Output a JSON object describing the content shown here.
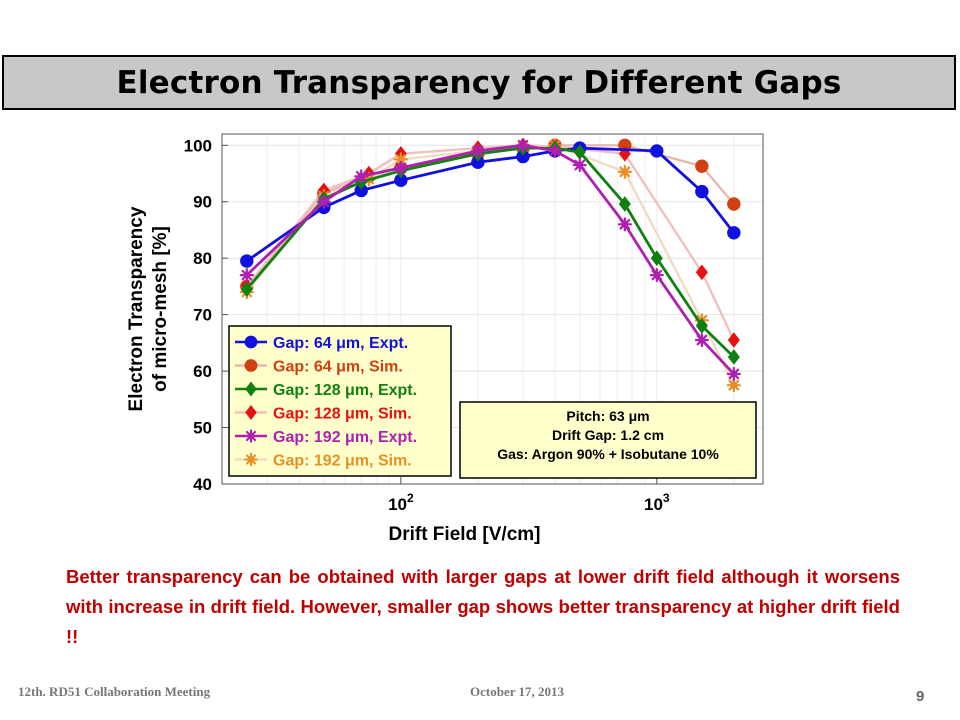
{
  "slide": {
    "title": "Electron Transparency for Different Gaps",
    "caption": "Better transparency can be obtained with larger gaps at lower drift field although it worsens with increase in drift field. However, smaller gap shows better transparency at higher drift field !!",
    "footer_left": "12th. RD51 Collaboration Meeting",
    "footer_date": "October 17, 2013",
    "page_number": "9"
  },
  "chart_data": {
    "type": "line",
    "xlabel": "Drift Field [V/cm]",
    "ylabel_lines": [
      "Electron Transparency",
      "of micro-mesh [%]"
    ],
    "x_scale": "log",
    "xlim": [
      20,
      2600
    ],
    "ylim": [
      40,
      102
    ],
    "y_ticks": [
      40,
      50,
      60,
      70,
      80,
      90,
      100
    ],
    "x_ticks": [
      {
        "value": 100,
        "base": "10",
        "exp": "2"
      },
      {
        "value": 1000,
        "base": "10",
        "exp": "3"
      }
    ],
    "grid": true,
    "legend_position": "bottom-left",
    "series": [
      {
        "name": "Gap: 64 μm, Expt.",
        "color": "#1010e0",
        "marker": "circle",
        "kind": "expt",
        "x": [
          25,
          50,
          70,
          100,
          200,
          300,
          400,
          500,
          1000,
          1500,
          2000
        ],
        "y": [
          79.5,
          89,
          92,
          93.8,
          97,
          98,
          99,
          99.5,
          99,
          91.8,
          84.5
        ]
      },
      {
        "name": "Gap: 64 μm, Sim.",
        "color": "#d04010",
        "line_color": "#e8b8b0",
        "marker": "circle",
        "kind": "sim",
        "x": [
          25,
          50,
          75,
          100,
          200,
          300,
          400,
          750,
          1500,
          2000
        ],
        "y": [
          75,
          91.5,
          94.5,
          96,
          98.5,
          99.5,
          100,
          100,
          96.3,
          89.6
        ]
      },
      {
        "name": "Gap: 128 μm, Expt.",
        "color": "#108010",
        "marker": "diamond",
        "kind": "expt",
        "x": [
          25,
          50,
          70,
          100,
          200,
          300,
          400,
          500,
          750,
          1000,
          1500,
          2000
        ],
        "y": [
          74.5,
          90.5,
          93.5,
          95.5,
          98.5,
          99.5,
          99.5,
          98.8,
          89.6,
          80,
          68,
          62.5
        ]
      },
      {
        "name": "Gap: 128 μm, Sim.",
        "color": "#e81010",
        "line_color": "#f0c0c0",
        "marker": "diamond",
        "kind": "sim",
        "x": [
          25,
          50,
          75,
          100,
          200,
          300,
          400,
          750,
          1500,
          2000
        ],
        "y": [
          75,
          92,
          95,
          98.5,
          99.5,
          100,
          99.8,
          98.5,
          77.5,
          65.5
        ]
      },
      {
        "name": "Gap: 192 μm, Expt.",
        "color": "#b020b0",
        "marker": "star",
        "kind": "expt",
        "x": [
          25,
          50,
          70,
          100,
          200,
          300,
          400,
          500,
          750,
          1000,
          1500,
          2000
        ],
        "y": [
          77,
          90,
          94.5,
          96,
          99,
          100,
          99,
          96.5,
          86,
          77,
          65.5,
          59.5
        ]
      },
      {
        "name": "Gap: 192 μm, Sim.",
        "color": "#e89028",
        "line_color": "#f0dcc0",
        "marker": "star",
        "kind": "sim",
        "x": [
          25,
          50,
          75,
          100,
          200,
          300,
          400,
          750,
          1500,
          2000
        ],
        "y": [
          74,
          91,
          94,
          97.5,
          99,
          99.5,
          100,
          95.3,
          69,
          57.5
        ]
      }
    ],
    "annotation": [
      "Pitch: 63 μm",
      "Drift Gap: 1.2 cm",
      "Gas: Argon 90% + Isobutane 10%"
    ]
  }
}
